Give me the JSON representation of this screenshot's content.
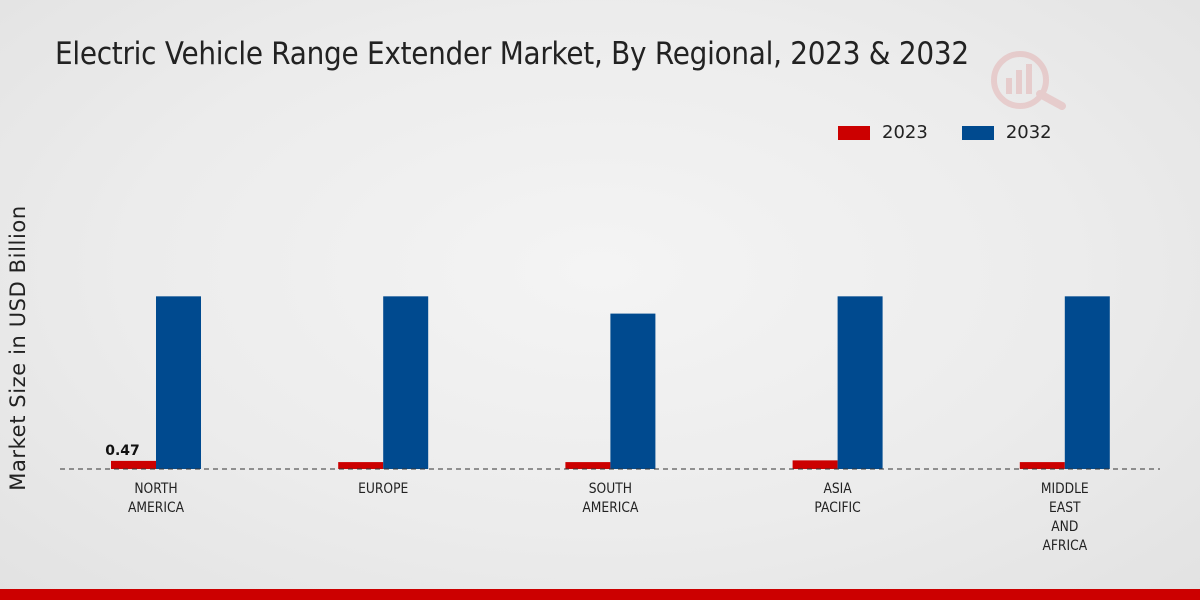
{
  "chart_data": {
    "type": "bar",
    "title": "Electric Vehicle Range Extender Market, By Regional, 2023 & 2032",
    "xlabel": "",
    "ylabel": "Market Size in USD Billion",
    "categories": [
      [
        "NORTH",
        "AMERICA"
      ],
      [
        "EUROPE"
      ],
      [
        "SOUTH",
        "AMERICA"
      ],
      [
        "ASIA",
        "PACIFIC"
      ],
      [
        "MIDDLE",
        "EAST",
        "AND",
        "AFRICA"
      ]
    ],
    "series": [
      {
        "name": "2023",
        "color": "#cc0000",
        "values": [
          0.47,
          0.4,
          0.4,
          0.5,
          0.4
        ]
      },
      {
        "name": "2032",
        "color": "#004a8f",
        "values": [
          10.0,
          10.0,
          9.0,
          10.0,
          10.0
        ]
      }
    ],
    "data_labels": [
      {
        "series": 0,
        "index": 0,
        "text": "0.47"
      }
    ],
    "ylim": [
      0,
      15
    ],
    "grid": false,
    "legend": "top-right"
  }
}
